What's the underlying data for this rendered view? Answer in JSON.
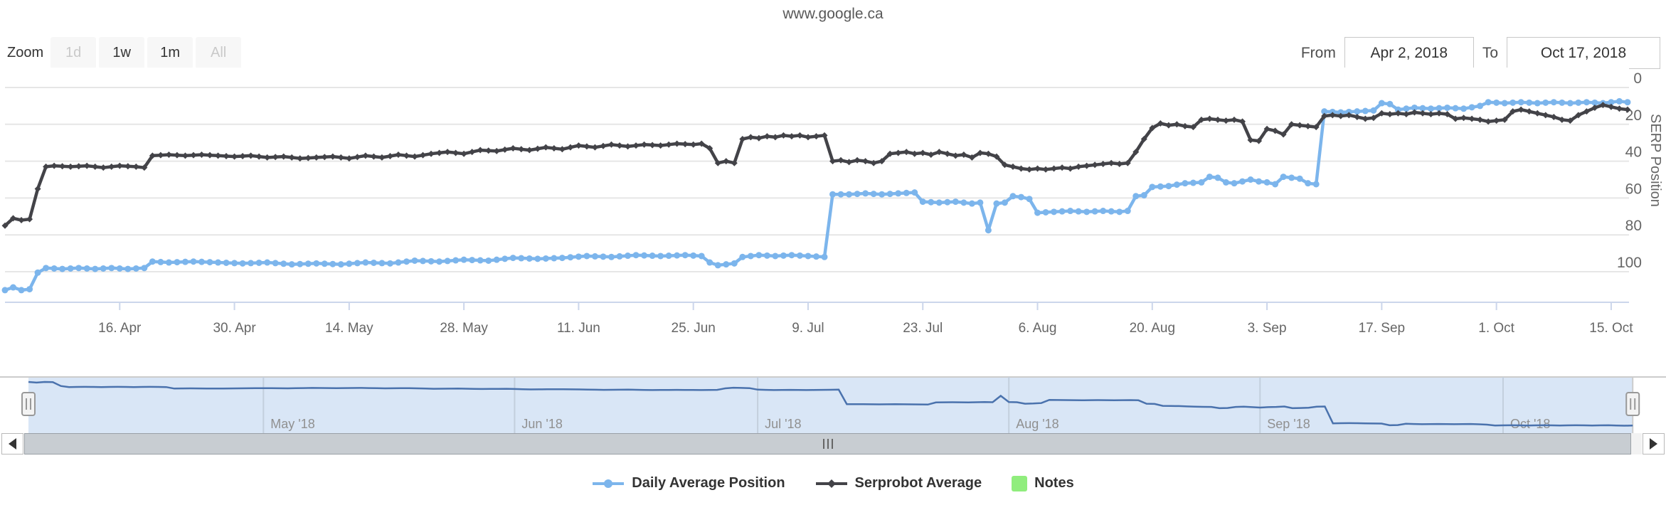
{
  "title": "www.google.ca",
  "range_selector": {
    "zoom_label": "Zoom",
    "buttons": [
      {
        "label": "1d",
        "enabled": false
      },
      {
        "label": "1w",
        "enabled": true
      },
      {
        "label": "1m",
        "enabled": true
      },
      {
        "label": "All",
        "enabled": false
      }
    ],
    "from_label": "From",
    "from_value": "Apr 2, 2018",
    "to_label": "To",
    "to_value": "Oct 17, 2018"
  },
  "chart_data": {
    "type": "line",
    "title": "www.google.ca",
    "x_unit": "days since Apr 2, 2018",
    "x_range_days": 198,
    "y_axis": {
      "title": "SERP Position",
      "ticks": [
        0,
        20,
        40,
        60,
        80,
        100
      ],
      "reversed": true
    },
    "grid": true,
    "legend_position": "bottom-center",
    "x_ticks": [
      {
        "day": 14,
        "label": "16. Apr"
      },
      {
        "day": 28,
        "label": "30. Apr"
      },
      {
        "day": 42,
        "label": "14. May"
      },
      {
        "day": 56,
        "label": "28. May"
      },
      {
        "day": 70,
        "label": "11. Jun"
      },
      {
        "day": 84,
        "label": "25. Jun"
      },
      {
        "day": 98,
        "label": "9. Jul"
      },
      {
        "day": 112,
        "label": "23. Jul"
      },
      {
        "day": 126,
        "label": "6. Aug"
      },
      {
        "day": 140,
        "label": "20. Aug"
      },
      {
        "day": 154,
        "label": "3. Sep"
      },
      {
        "day": 168,
        "label": "17. Sep"
      },
      {
        "day": 182,
        "label": "1. Oct"
      },
      {
        "day": 196,
        "label": "15. Oct"
      }
    ],
    "series": [
      {
        "name": "Daily Average Position",
        "color": "#7cb5ec",
        "marker": "circle",
        "points": [
          [
            0,
            110
          ],
          [
            1,
            108.5
          ],
          [
            2,
            110
          ],
          [
            3,
            109.5
          ],
          [
            3.5,
            109
          ],
          [
            4,
            100.5
          ],
          [
            5,
            98
          ],
          [
            7,
            98.5
          ],
          [
            9,
            98
          ],
          [
            11,
            98.5
          ],
          [
            13,
            98
          ],
          [
            15,
            98.5
          ],
          [
            17,
            98
          ],
          [
            18,
            94.5
          ],
          [
            20,
            95
          ],
          [
            23,
            94.5
          ],
          [
            26,
            95
          ],
          [
            29,
            95.5
          ],
          [
            32,
            95
          ],
          [
            35,
            96
          ],
          [
            38,
            95.5
          ],
          [
            41,
            96
          ],
          [
            44,
            95
          ],
          [
            47,
            95.5
          ],
          [
            50,
            94
          ],
          [
            53,
            94.5
          ],
          [
            56,
            93.5
          ],
          [
            59,
            94
          ],
          [
            62,
            92.5
          ],
          [
            65,
            93
          ],
          [
            68,
            92.5
          ],
          [
            71,
            91.5
          ],
          [
            74,
            92
          ],
          [
            77,
            91
          ],
          [
            80,
            91.5
          ],
          [
            83,
            91
          ],
          [
            85,
            91.5
          ],
          [
            86,
            95
          ],
          [
            87,
            96.5
          ],
          [
            88,
            96
          ],
          [
            89,
            95.5
          ],
          [
            90,
            92
          ],
          [
            92,
            91
          ],
          [
            94,
            91.5
          ],
          [
            96,
            91
          ],
          [
            98,
            91.5
          ],
          [
            100,
            92
          ],
          [
            100.6,
            96
          ],
          [
            101,
            58
          ],
          [
            103,
            58
          ],
          [
            105,
            57.5
          ],
          [
            107,
            58
          ],
          [
            109,
            57.5
          ],
          [
            111,
            57
          ],
          [
            112,
            62
          ],
          [
            114,
            62.5
          ],
          [
            116,
            62
          ],
          [
            118,
            63
          ],
          [
            119,
            62.5
          ],
          [
            120,
            77.5
          ],
          [
            121,
            63
          ],
          [
            122,
            62.5
          ],
          [
            123,
            59
          ],
          [
            124,
            59.5
          ],
          [
            125,
            60.5
          ],
          [
            126,
            68
          ],
          [
            128,
            67.5
          ],
          [
            130,
            67
          ],
          [
            132,
            67.5
          ],
          [
            134,
            67
          ],
          [
            136,
            67.5
          ],
          [
            137,
            67
          ],
          [
            138,
            59
          ],
          [
            139,
            58.5
          ],
          [
            140,
            54
          ],
          [
            142,
            53.5
          ],
          [
            144,
            52
          ],
          [
            146,
            51.5
          ],
          [
            147,
            48.5
          ],
          [
            148,
            49
          ],
          [
            149,
            51.5
          ],
          [
            150,
            52
          ],
          [
            152,
            50
          ],
          [
            153,
            51
          ],
          [
            154,
            51.5
          ],
          [
            155,
            52.5
          ],
          [
            156,
            48.5
          ],
          [
            157,
            49
          ],
          [
            158,
            49.5
          ],
          [
            159,
            52
          ],
          [
            160,
            52.5
          ],
          [
            160.6,
            53
          ],
          [
            161,
            13
          ],
          [
            163,
            13.5
          ],
          [
            165,
            13
          ],
          [
            167,
            12.5
          ],
          [
            168,
            8.5
          ],
          [
            169,
            9
          ],
          [
            170,
            12
          ],
          [
            172,
            11
          ],
          [
            174,
            11.5
          ],
          [
            176,
            11
          ],
          [
            178,
            11.5
          ],
          [
            180,
            10
          ],
          [
            181,
            8
          ],
          [
            183,
            8.5
          ],
          [
            185,
            8
          ],
          [
            187,
            8.5
          ],
          [
            189,
            8
          ],
          [
            191,
            8.5
          ],
          [
            193,
            8
          ],
          [
            195,
            8.5
          ],
          [
            196,
            8
          ],
          [
            197,
            7.5
          ],
          [
            198,
            8
          ]
        ]
      },
      {
        "name": "Serprobot Average",
        "color": "#434348",
        "marker": "diamond",
        "points": [
          [
            0,
            75
          ],
          [
            1,
            71
          ],
          [
            2,
            72
          ],
          [
            3,
            71.5
          ],
          [
            3.5,
            68
          ],
          [
            4,
            55
          ],
          [
            5,
            43
          ],
          [
            6,
            42.5
          ],
          [
            8,
            43
          ],
          [
            10,
            42.5
          ],
          [
            12,
            43.5
          ],
          [
            14,
            42.5
          ],
          [
            16,
            43
          ],
          [
            17,
            43.5
          ],
          [
            18,
            37
          ],
          [
            20,
            36.5
          ],
          [
            22,
            37
          ],
          [
            24,
            36.5
          ],
          [
            26,
            37
          ],
          [
            28,
            37.5
          ],
          [
            30,
            37
          ],
          [
            32,
            38
          ],
          [
            34,
            37.5
          ],
          [
            36,
            38.5
          ],
          [
            38,
            38
          ],
          [
            40,
            37.5
          ],
          [
            42,
            38.5
          ],
          [
            44,
            37
          ],
          [
            46,
            38
          ],
          [
            48,
            36.5
          ],
          [
            50,
            37.5
          ],
          [
            52,
            36
          ],
          [
            54,
            35
          ],
          [
            56,
            36
          ],
          [
            58,
            34
          ],
          [
            60,
            34.5
          ],
          [
            62,
            33
          ],
          [
            64,
            34
          ],
          [
            66,
            32.5
          ],
          [
            68,
            33.5
          ],
          [
            70,
            31.5
          ],
          [
            72,
            32.5
          ],
          [
            74,
            31
          ],
          [
            76,
            32
          ],
          [
            78,
            31
          ],
          [
            80,
            31.5
          ],
          [
            82,
            30.5
          ],
          [
            84,
            31
          ],
          [
            85,
            30.5
          ],
          [
            86,
            33
          ],
          [
            86.5,
            39
          ],
          [
            87,
            41
          ],
          [
            88,
            40
          ],
          [
            89,
            41
          ],
          [
            90,
            28
          ],
          [
            91,
            27
          ],
          [
            92,
            27.5
          ],
          [
            93,
            26.5
          ],
          [
            94,
            27
          ],
          [
            95,
            26
          ],
          [
            96,
            26.5
          ],
          [
            97,
            26
          ],
          [
            98,
            27
          ],
          [
            99,
            26.5
          ],
          [
            100,
            26
          ],
          [
            101,
            40
          ],
          [
            102,
            39.5
          ],
          [
            103,
            40.5
          ],
          [
            104,
            39.5
          ],
          [
            105,
            40
          ],
          [
            106,
            41
          ],
          [
            107,
            40
          ],
          [
            108,
            36
          ],
          [
            109,
            35.5
          ],
          [
            110,
            35
          ],
          [
            111,
            36
          ],
          [
            112,
            35.5
          ],
          [
            113,
            36.5
          ],
          [
            114,
            35
          ],
          [
            115,
            36
          ],
          [
            116,
            37
          ],
          [
            117,
            36.5
          ],
          [
            118,
            38
          ],
          [
            119,
            35.5
          ],
          [
            120,
            36
          ],
          [
            121,
            37.5
          ],
          [
            122,
            42
          ],
          [
            123,
            43
          ],
          [
            124,
            44
          ],
          [
            125,
            44.5
          ],
          [
            126,
            44
          ],
          [
            127,
            44.5
          ],
          [
            128,
            44
          ],
          [
            129,
            43.5
          ],
          [
            130,
            44
          ],
          [
            131,
            43
          ],
          [
            132,
            42.5
          ],
          [
            133,
            42
          ],
          [
            134,
            41.5
          ],
          [
            135,
            41
          ],
          [
            136,
            41.5
          ],
          [
            137,
            41
          ],
          [
            138,
            35
          ],
          [
            139,
            28
          ],
          [
            140,
            22
          ],
          [
            141,
            19.5
          ],
          [
            142,
            20.5
          ],
          [
            143,
            20
          ],
          [
            144,
            21
          ],
          [
            145,
            21.5
          ],
          [
            146,
            17.5
          ],
          [
            147,
            17
          ],
          [
            148,
            17.5
          ],
          [
            149,
            18
          ],
          [
            150,
            17.5
          ],
          [
            151,
            18.5
          ],
          [
            152,
            28.5
          ],
          [
            153,
            29
          ],
          [
            154,
            22.5
          ],
          [
            155,
            23.5
          ],
          [
            156,
            25.5
          ],
          [
            156.6,
            27
          ],
          [
            157,
            20
          ],
          [
            158,
            20.5
          ],
          [
            159,
            21
          ],
          [
            160,
            21.5
          ],
          [
            161,
            15.5
          ],
          [
            162,
            15
          ],
          [
            163,
            15.5
          ],
          [
            164,
            15
          ],
          [
            165,
            16
          ],
          [
            166,
            17
          ],
          [
            167,
            16.5
          ],
          [
            168,
            14
          ],
          [
            169,
            14.5
          ],
          [
            170,
            14
          ],
          [
            171,
            14.5
          ],
          [
            172,
            13.5
          ],
          [
            173,
            14
          ],
          [
            174,
            14.5
          ],
          [
            175,
            14
          ],
          [
            176,
            14.5
          ],
          [
            177,
            17
          ],
          [
            178,
            16.5
          ],
          [
            179,
            17
          ],
          [
            180,
            17.5
          ],
          [
            181,
            18.5
          ],
          [
            182,
            18
          ],
          [
            183,
            17.5
          ],
          [
            184,
            13
          ],
          [
            185,
            12
          ],
          [
            186,
            13
          ],
          [
            187,
            14
          ],
          [
            188,
            15
          ],
          [
            189,
            16
          ],
          [
            190,
            17.5
          ],
          [
            191,
            18
          ],
          [
            192,
            15
          ],
          [
            193,
            13
          ],
          [
            194,
            11
          ],
          [
            195,
            9.5
          ],
          [
            196,
            10.5
          ],
          [
            197,
            11.5
          ],
          [
            198,
            12
          ]
        ]
      }
    ],
    "legend_notes": {
      "label": "Notes",
      "color": "#90ed7d"
    }
  },
  "navigator": {
    "months": [
      {
        "day": 29,
        "label": "May '18"
      },
      {
        "day": 60,
        "label": "Jun '18"
      },
      {
        "day": 90,
        "label": "Jul '18"
      },
      {
        "day": 121,
        "label": "Aug '18"
      },
      {
        "day": 152,
        "label": "Sep '18"
      },
      {
        "day": 182,
        "label": "Oct '18"
      }
    ],
    "series_color": "#4a72ad",
    "mask_fill": "#d9e6f6"
  },
  "colors": {
    "grid": "#e6e6e6",
    "axis_line": "#ccd6eb",
    "tick_text": "#666666",
    "month_text": "#909090",
    "legend_text": "#333333"
  }
}
